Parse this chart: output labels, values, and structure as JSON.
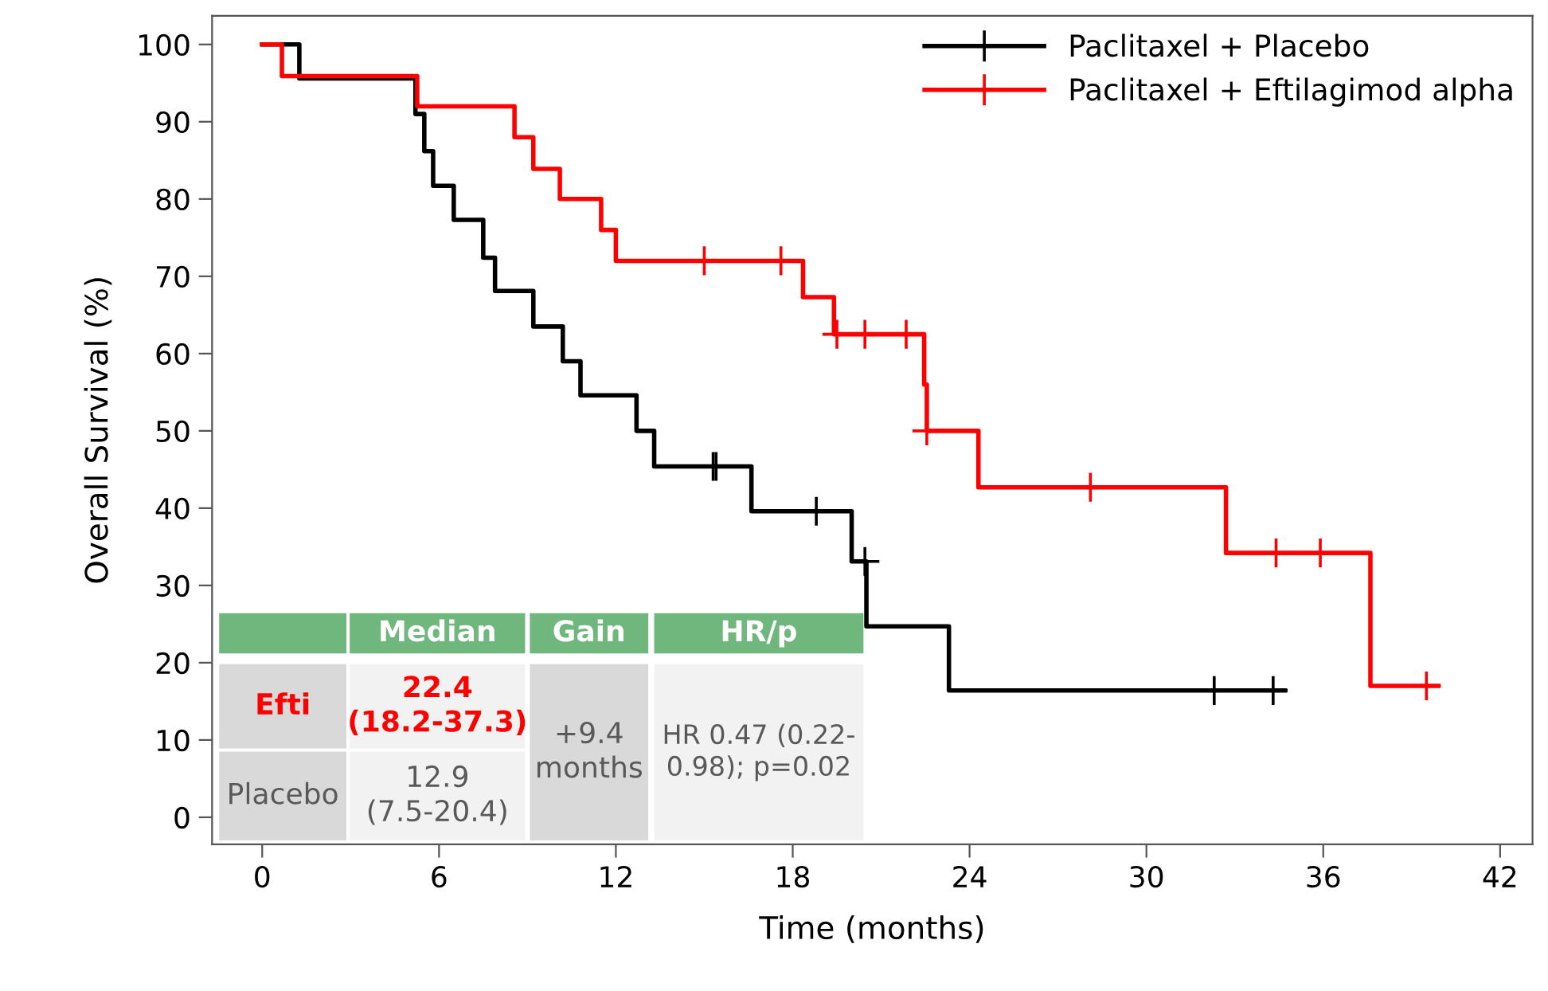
{
  "chart_data": {
    "type": "step",
    "xlabel": "Time (months)",
    "ylabel": "Overall Survival (%)",
    "xlim": [
      -1.7,
      43.1
    ],
    "ylim": [
      -3.5,
      103.7
    ],
    "xticks": [
      0,
      6,
      12,
      18,
      24,
      30,
      36,
      42
    ],
    "yticks": [
      0,
      10,
      20,
      30,
      40,
      50,
      60,
      70,
      80,
      90,
      100
    ],
    "grid": false,
    "legend": "top right",
    "series": [
      {
        "name": "Paclitaxel + Placebo",
        "color": "#000000",
        "line_style": "solid",
        "x": [
          0,
          1.26,
          5.2,
          5.5,
          5.8,
          6.5,
          7.5,
          7.9,
          9.2,
          10.2,
          10.8,
          12.7,
          13.3,
          16.6,
          20.0,
          20.5,
          23.3,
          34.7
        ],
        "values": [
          100,
          95.6,
          91.0,
          86.2,
          81.7,
          77.3,
          72.4,
          68.1,
          63.5,
          59.0,
          54.6,
          50.0,
          45.4,
          39.6,
          33.1,
          24.7,
          16.4,
          16.4
        ]
      },
      {
        "name": "Paclitaxel + Eftilagimod alpha",
        "color": "#ff0000",
        "line_style": "solid",
        "x": [
          0,
          0.67,
          5.26,
          8.56,
          9.2,
          10.1,
          11.5,
          12.0,
          18.35,
          19.4,
          22.46,
          22.55,
          24.3,
          32.7,
          37.6,
          39.9
        ],
        "values": [
          100,
          95.9,
          92.0,
          88.0,
          83.9,
          80.0,
          76.0,
          72.0,
          67.3,
          62.5,
          56.0,
          50.0,
          42.7,
          34.2,
          17.0,
          17.0
        ]
      },
      {
        "type": "scatter",
        "color": "#000000",
        "marker": "cross",
        "x": [
          15.3,
          15.4,
          18.8,
          20.45,
          32.3,
          34.3
        ],
        "values": [
          45.4,
          45.4,
          39.6,
          33.1,
          16.4,
          16.4
        ]
      },
      {
        "type": "scatter",
        "color": "#ff0000",
        "marker": "cross",
        "x": [
          15.0,
          17.6,
          19.5,
          20.45,
          21.85,
          22.55,
          28.1,
          34.4,
          35.9,
          39.5
        ],
        "values": [
          72.0,
          72.0,
          62.5,
          62.5,
          62.5,
          50.0,
          42.7,
          34.2,
          34.2,
          17.0
        ]
      }
    ],
    "annotations": [
      "Median",
      "Gain",
      "HR/p",
      "Efti",
      "22.4\n(18.2-37.3)",
      "Placebo",
      "12.9\n(7.5-20.4)",
      "+9.4\nmonths",
      "HR 0.47 (0.22-\n0.98); p=0.02"
    ]
  }
}
